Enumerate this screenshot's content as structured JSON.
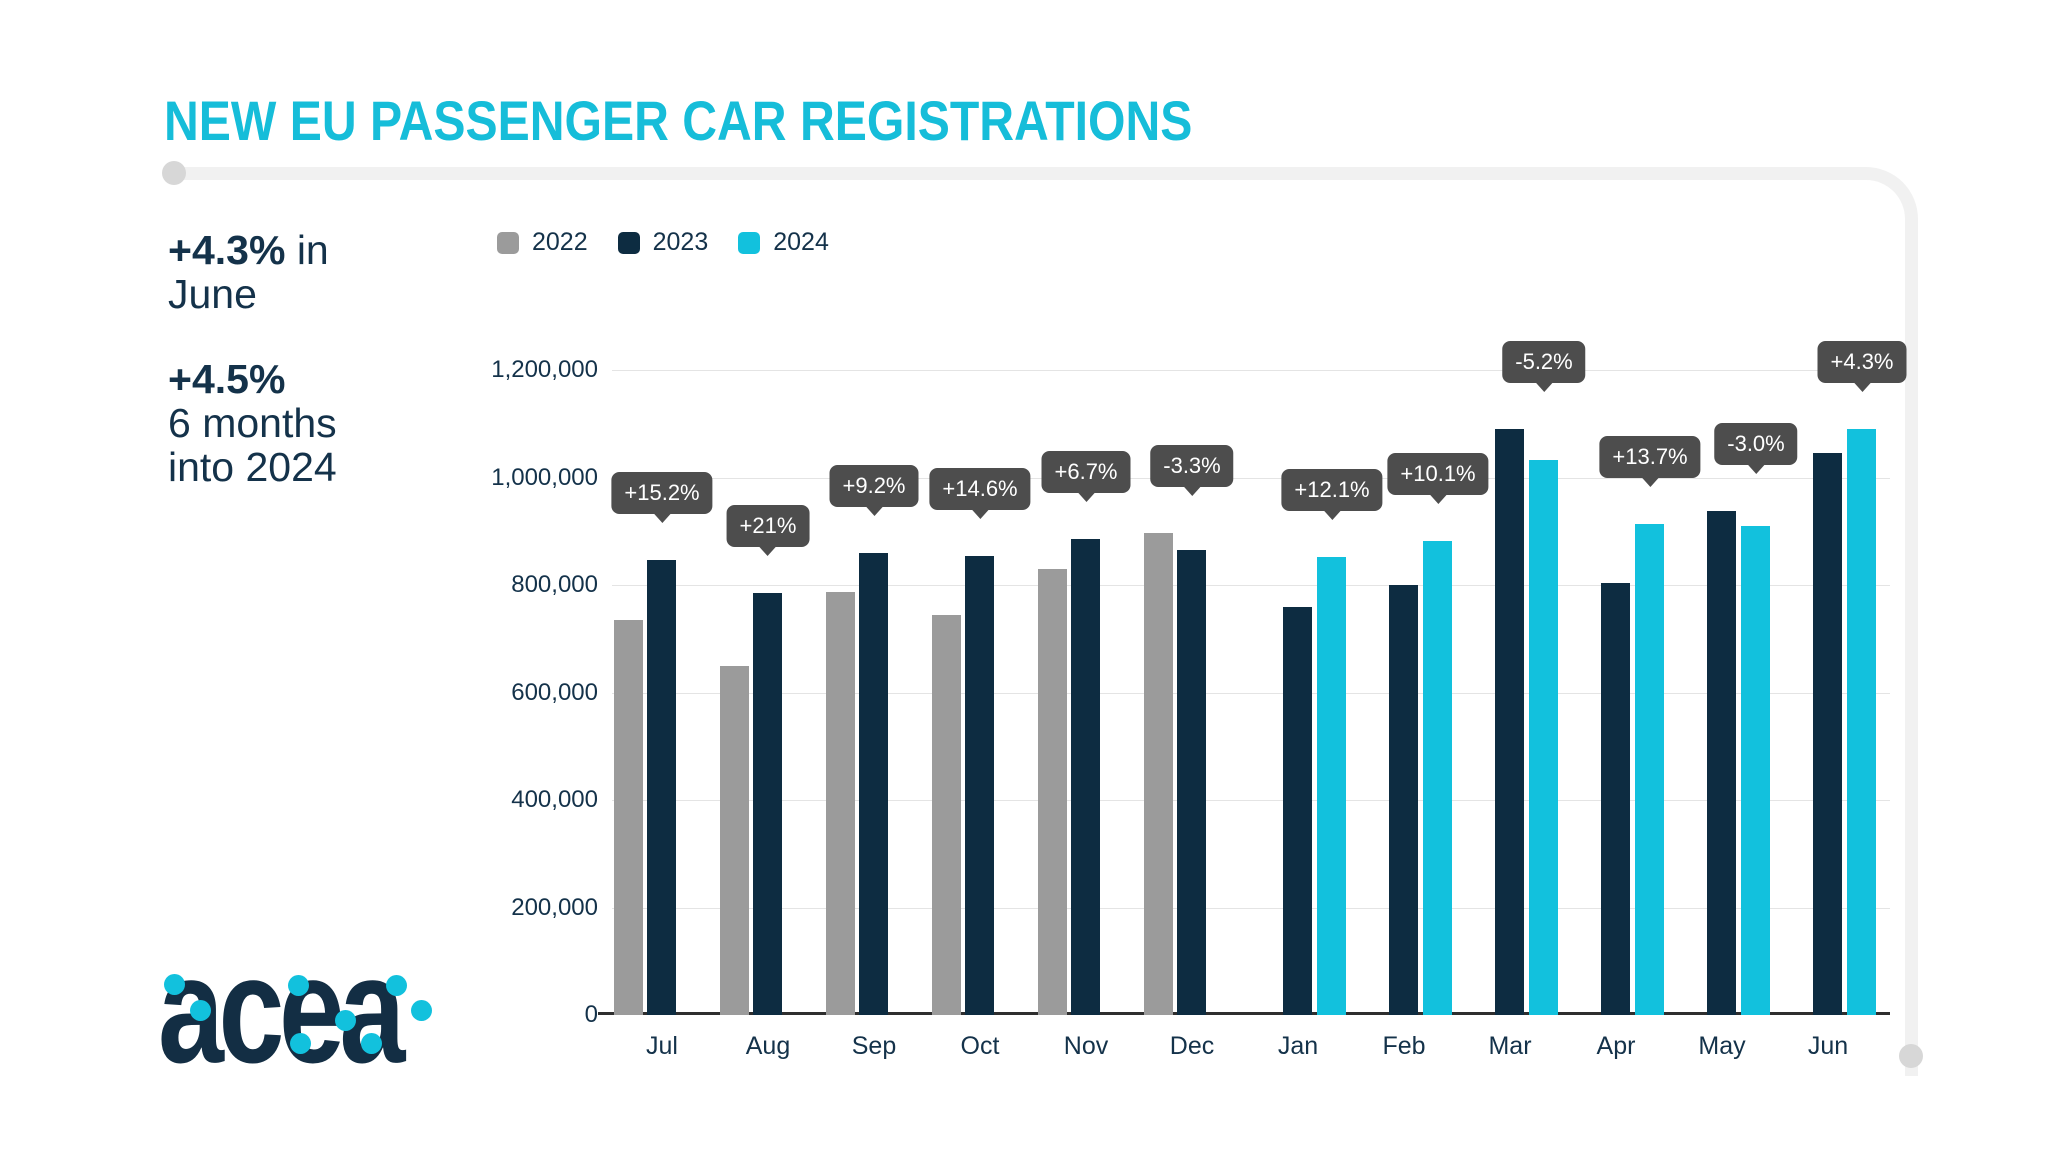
{
  "title": "NEW EU PASSENGER CAR REGISTRATIONS",
  "stats": [
    {
      "value": "+4.3%",
      "rest": "in June"
    },
    {
      "value": "+4.5%",
      "rest": "6 months into 2024"
    }
  ],
  "logo": {
    "text": "acea"
  },
  "colors": {
    "title": "#16bdd9",
    "navy_text": "#14324a",
    "badge_bg": "#4d4d4d",
    "badge_text": "#ffffff",
    "grid": "#e4e4e4",
    "axis": "#2e2e2e",
    "frame": "#f1f1f1",
    "accent_cyan": "#12c1dd"
  },
  "chart_data": {
    "type": "bar",
    "title": "",
    "xlabel": "",
    "ylabel": "",
    "categories": [
      "Jul",
      "Aug",
      "Sep",
      "Oct",
      "Nov",
      "Dec",
      "Jan",
      "Feb",
      "Mar",
      "Apr",
      "May",
      "Jun"
    ],
    "series": [
      {
        "name": "2022",
        "color": "#9b9b9b",
        "values": [
          735000,
          650000,
          787000,
          745000,
          830000,
          896000,
          null,
          null,
          null,
          null,
          null,
          null
        ]
      },
      {
        "name": "2023",
        "color": "#0d2c41",
        "values": [
          847000,
          786000,
          860000,
          854000,
          885000,
          866000,
          760000,
          800000,
          1090000,
          803000,
          938000,
          1045000
        ]
      },
      {
        "name": "2024",
        "color": "#12c1dd",
        "values": [
          null,
          null,
          null,
          null,
          null,
          null,
          852000,
          881000,
          1033000,
          913000,
          910000,
          1090000
        ]
      }
    ],
    "badges": [
      "+15.2%",
      "+21%",
      "+9.2%",
      "+14.6%",
      "+6.7%",
      "-3.3%",
      "+12.1%",
      "+10.1%",
      "-5.2%",
      "+13.7%",
      "-3.0%",
      "+4.3%"
    ],
    "y_ticks": [
      "0",
      "200,000",
      "400,000",
      "600,000",
      "800,000",
      "1,000,000",
      "1,200,000"
    ],
    "ylim": [
      0,
      1200000
    ],
    "grid": true,
    "legend_position": "top-left"
  }
}
